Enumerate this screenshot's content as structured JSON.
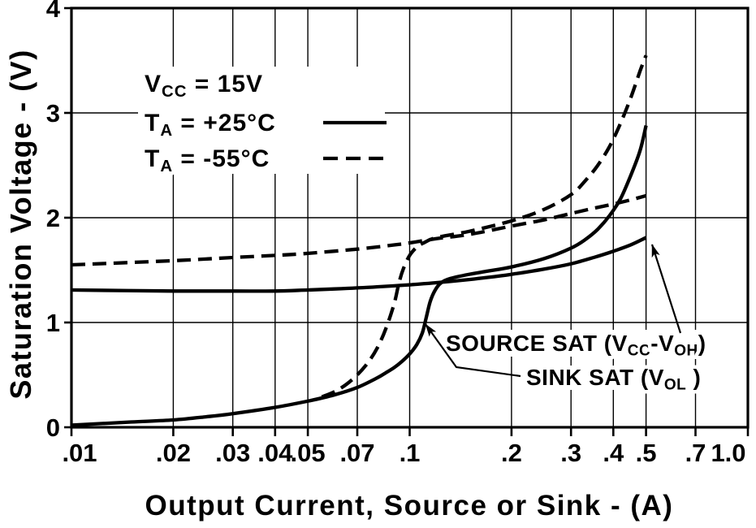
{
  "figure": {
    "background": "#ffffff",
    "line_color": "#000000"
  },
  "legend": {
    "lines": [
      {
        "id": "legend-vcc",
        "text": "VCC = 15V",
        "segments": [
          {
            "t": "V"
          },
          {
            "sub": "CC"
          },
          {
            "t": " = 15V"
          }
        ],
        "sample": "none"
      },
      {
        "id": "legend-25c",
        "text": "TA = +25°C",
        "segments": [
          {
            "t": "T"
          },
          {
            "sub": "A"
          },
          {
            "t": " = +25°C"
          }
        ],
        "sample": "solid"
      },
      {
        "id": "legend-m55c",
        "text": "TA = -55°C",
        "segments": [
          {
            "t": "T"
          },
          {
            "sub": "A"
          },
          {
            "t": " = -55°C"
          }
        ],
        "sample": "dashed"
      }
    ]
  },
  "chart_data": {
    "type": "line",
    "x_scale": "log",
    "xlabel": "Output Current, Source or Sink - (A)",
    "ylabel": "Saturation Voltage - (V)",
    "xlim": [
      0.01,
      1.0
    ],
    "ylim": [
      0,
      4
    ],
    "grid": true,
    "conditions": "VCC = 15V",
    "x_ticks": {
      "values": [
        0.01,
        0.02,
        0.03,
        0.04,
        0.05,
        0.07,
        0.1,
        0.2,
        0.3,
        0.4,
        0.5,
        0.7,
        1.0
      ],
      "labels": [
        ".01",
        ".02",
        ".03",
        ".04",
        ".05",
        ".07",
        ".1",
        ".2",
        ".3",
        ".4",
        ".5",
        ".7",
        "1.0"
      ]
    },
    "y_ticks": {
      "values": [
        0,
        1,
        2,
        3,
        4
      ],
      "labels": [
        "0",
        "1",
        "2",
        "3",
        "4"
      ]
    },
    "series": [
      {
        "id": "source-sat-25c",
        "name": "SOURCE SAT (VCC-VOH), TA = +25°C",
        "line_style": "solid",
        "points": [
          [
            0.01,
            1.31
          ],
          [
            0.02,
            1.3
          ],
          [
            0.03,
            1.3
          ],
          [
            0.04,
            1.3
          ],
          [
            0.05,
            1.31
          ],
          [
            0.06,
            1.32
          ],
          [
            0.07,
            1.33
          ],
          [
            0.08,
            1.34
          ],
          [
            0.09,
            1.35
          ],
          [
            0.1,
            1.36
          ],
          [
            0.12,
            1.38
          ],
          [
            0.15,
            1.41
          ],
          [
            0.17,
            1.43
          ],
          [
            0.2,
            1.46
          ],
          [
            0.25,
            1.51
          ],
          [
            0.3,
            1.56
          ],
          [
            0.35,
            1.62
          ],
          [
            0.4,
            1.68
          ],
          [
            0.45,
            1.74
          ],
          [
            0.5,
            1.81
          ]
        ]
      },
      {
        "id": "source-sat-m55c",
        "name": "SOURCE SAT (VCC-VOH), TA = -55°C",
        "line_style": "dashed",
        "points": [
          [
            0.01,
            1.55
          ],
          [
            0.02,
            1.59
          ],
          [
            0.03,
            1.62
          ],
          [
            0.04,
            1.64
          ],
          [
            0.05,
            1.66
          ],
          [
            0.07,
            1.7
          ],
          [
            0.09,
            1.74
          ],
          [
            0.1,
            1.76
          ],
          [
            0.12,
            1.8
          ],
          [
            0.15,
            1.84
          ],
          [
            0.2,
            1.92
          ],
          [
            0.25,
            1.98
          ],
          [
            0.3,
            2.04
          ],
          [
            0.35,
            2.09
          ],
          [
            0.4,
            2.13
          ],
          [
            0.45,
            2.17
          ],
          [
            0.5,
            2.21
          ]
        ]
      },
      {
        "id": "sink-sat-25c",
        "name": "SINK SAT (VOL), TA = +25°C",
        "line_style": "solid",
        "points": [
          [
            0.01,
            0.02
          ],
          [
            0.015,
            0.05
          ],
          [
            0.02,
            0.07
          ],
          [
            0.025,
            0.1
          ],
          [
            0.03,
            0.13
          ],
          [
            0.04,
            0.19
          ],
          [
            0.05,
            0.25
          ],
          [
            0.06,
            0.31
          ],
          [
            0.07,
            0.38
          ],
          [
            0.08,
            0.47
          ],
          [
            0.085,
            0.52
          ],
          [
            0.09,
            0.57
          ],
          [
            0.095,
            0.63
          ],
          [
            0.1,
            0.7
          ],
          [
            0.105,
            0.79
          ],
          [
            0.109,
            0.9
          ],
          [
            0.112,
            1.05
          ],
          [
            0.115,
            1.2
          ],
          [
            0.119,
            1.31
          ],
          [
            0.124,
            1.38
          ],
          [
            0.132,
            1.42
          ],
          [
            0.15,
            1.46
          ],
          [
            0.17,
            1.49
          ],
          [
            0.2,
            1.53
          ],
          [
            0.25,
            1.61
          ],
          [
            0.3,
            1.71
          ],
          [
            0.33,
            1.79
          ],
          [
            0.36,
            1.89
          ],
          [
            0.39,
            2.02
          ],
          [
            0.42,
            2.18
          ],
          [
            0.45,
            2.4
          ],
          [
            0.48,
            2.64
          ],
          [
            0.5,
            2.88
          ]
        ]
      },
      {
        "id": "sink-sat-m55c",
        "name": "SINK SAT (VOL), TA = -55°C",
        "line_style": "dashed",
        "points": [
          [
            0.055,
            0.29
          ],
          [
            0.06,
            0.34
          ],
          [
            0.065,
            0.41
          ],
          [
            0.07,
            0.5
          ],
          [
            0.075,
            0.61
          ],
          [
            0.08,
            0.75
          ],
          [
            0.085,
            0.94
          ],
          [
            0.09,
            1.18
          ],
          [
            0.093,
            1.38
          ],
          [
            0.096,
            1.52
          ],
          [
            0.1,
            1.64
          ],
          [
            0.105,
            1.72
          ],
          [
            0.11,
            1.76
          ],
          [
            0.12,
            1.81
          ],
          [
            0.15,
            1.87
          ],
          [
            0.2,
            1.97
          ],
          [
            0.25,
            2.08
          ],
          [
            0.3,
            2.22
          ],
          [
            0.33,
            2.35
          ],
          [
            0.36,
            2.5
          ],
          [
            0.39,
            2.68
          ],
          [
            0.42,
            2.9
          ],
          [
            0.45,
            3.14
          ],
          [
            0.48,
            3.4
          ],
          [
            0.5,
            3.55
          ]
        ]
      }
    ],
    "annotations": [
      {
        "id": "source-sat",
        "text": "SOURCE SAT (VCC-VOH)",
        "segments": [
          {
            "t": "SOURCE SAT (V"
          },
          {
            "sub": "CC"
          },
          {
            "t": "-V"
          },
          {
            "sub": "OH"
          },
          {
            "t": ")"
          }
        ]
      },
      {
        "id": "sink-sat",
        "text": "SINK SAT (VOL )",
        "segments": [
          {
            "t": "SINK SAT (V"
          },
          {
            "sub": "OL"
          },
          {
            "t": " )"
          }
        ]
      }
    ]
  }
}
